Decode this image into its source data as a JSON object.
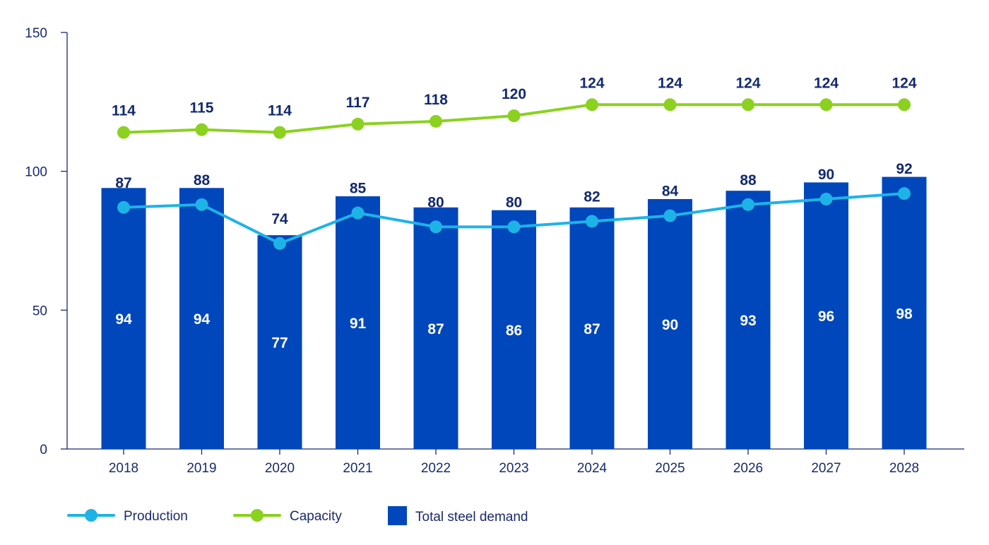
{
  "chart_data": {
    "type": "bar",
    "title": "",
    "xlabel": "",
    "ylabel": "",
    "ylim": [
      0,
      150
    ],
    "yticks": [
      0,
      50,
      100,
      150
    ],
    "categories": [
      "2018",
      "2019",
      "2020",
      "2021",
      "2022",
      "2023",
      "2024",
      "2025",
      "2026",
      "2027",
      "2028"
    ],
    "series": [
      {
        "name": "Total steel demand",
        "kind": "bar",
        "color": "#0047bb",
        "values": [
          94,
          94,
          77,
          91,
          87,
          86,
          87,
          90,
          93,
          96,
          98
        ],
        "labels": [
          "94",
          "94",
          "77",
          "91",
          "87",
          "86",
          "87",
          "90",
          "93",
          "96",
          "98"
        ]
      },
      {
        "name": "Production",
        "kind": "line",
        "color": "#1eb3e6",
        "values": [
          87,
          88,
          74,
          85,
          80,
          80,
          82,
          84,
          88,
          90,
          92
        ],
        "labels": [
          "87",
          "88",
          "74",
          "85",
          "80",
          "80",
          "82",
          "84",
          "88",
          "90",
          "92"
        ]
      },
      {
        "name": "Capacity",
        "kind": "line",
        "color": "#8bd11f",
        "values": [
          114,
          115,
          114,
          117,
          118,
          120,
          124,
          124,
          124,
          124,
          124
        ],
        "labels": [
          "114",
          "115",
          "114",
          "117",
          "118",
          "120",
          "124",
          "124",
          "124",
          "124",
          "124"
        ]
      }
    ],
    "legend": {
      "placement": "bottom-left",
      "items": [
        "Production",
        "Capacity",
        "Total steel demand"
      ]
    },
    "grid": false
  }
}
